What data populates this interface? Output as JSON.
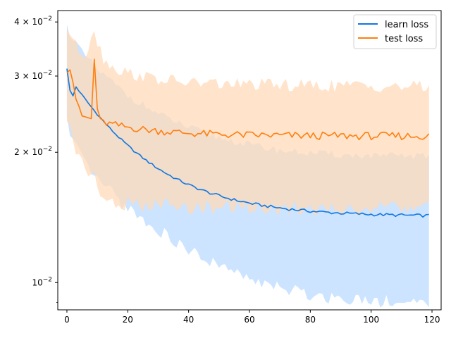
{
  "chart_data": {
    "type": "line",
    "title": "",
    "xlabel": "",
    "ylabel": "",
    "xlim": [
      -3,
      123
    ],
    "ylim": [
      0.00865,
      0.0425
    ],
    "yscale": "log",
    "grid": false,
    "legend_position": "top-right",
    "x_ticks": [
      0,
      20,
      40,
      60,
      80,
      100,
      120
    ],
    "x_tick_labels": [
      "0",
      "20",
      "40",
      "60",
      "80",
      "100",
      "120"
    ],
    "y_major_ticks": [
      0.01,
      0.02,
      0.03,
      0.04
    ],
    "y_tick_labels": [
      {
        "base": "10",
        "exp": "−2",
        "coef": ""
      },
      {
        "base": "10",
        "exp": "−2",
        "coef": "2 × "
      },
      {
        "base": "10",
        "exp": "−2",
        "coef": "3 × "
      },
      {
        "base": "10",
        "exp": "−2",
        "coef": "4 × "
      }
    ],
    "y_minor_ticks": [
      0.009
    ],
    "series": [
      {
        "name": "learn loss",
        "color": "#0f77e0",
        "fill_color": "#cce4ff",
        "band_x": [
          0,
          1,
          5,
          10,
          15,
          20,
          30,
          40,
          50,
          60,
          70,
          80,
          90,
          100,
          110,
          119
        ],
        "upper": [
          0.039,
          0.0375,
          0.034,
          0.031,
          0.029,
          0.027,
          0.0245,
          0.0228,
          0.0216,
          0.0208,
          0.0202,
          0.0199,
          0.0197,
          0.0196,
          0.0196,
          0.0196
        ],
        "lower": [
          0.0245,
          0.022,
          0.0195,
          0.0175,
          0.0162,
          0.015,
          0.0133,
          0.012,
          0.011,
          0.0103,
          0.0098,
          0.0095,
          0.0093,
          0.0092,
          0.0091,
          0.009
        ]
      },
      {
        "name": "test loss",
        "color": "#ff7f0e",
        "fill_color": "#ffd9b8",
        "band_x": [
          0,
          1,
          3,
          6,
          9,
          10,
          12,
          15,
          20,
          25,
          30,
          35,
          40,
          50,
          60,
          70,
          80,
          90,
          100,
          110,
          119
        ],
        "upper": [
          0.0385,
          0.038,
          0.035,
          0.0335,
          0.039,
          0.036,
          0.033,
          0.0315,
          0.0305,
          0.03,
          0.0295,
          0.0292,
          0.029,
          0.0288,
          0.0287,
          0.0286,
          0.0285,
          0.0285,
          0.0285,
          0.0284,
          0.0283
        ],
        "lower": [
          0.0235,
          0.0235,
          0.0205,
          0.019,
          0.0175,
          0.0165,
          0.0158,
          0.0155,
          0.0153,
          0.0152,
          0.0152,
          0.0151,
          0.0151,
          0.0151,
          0.015,
          0.015,
          0.015,
          0.015,
          0.015,
          0.015,
          0.015
        ]
      }
    ]
  }
}
